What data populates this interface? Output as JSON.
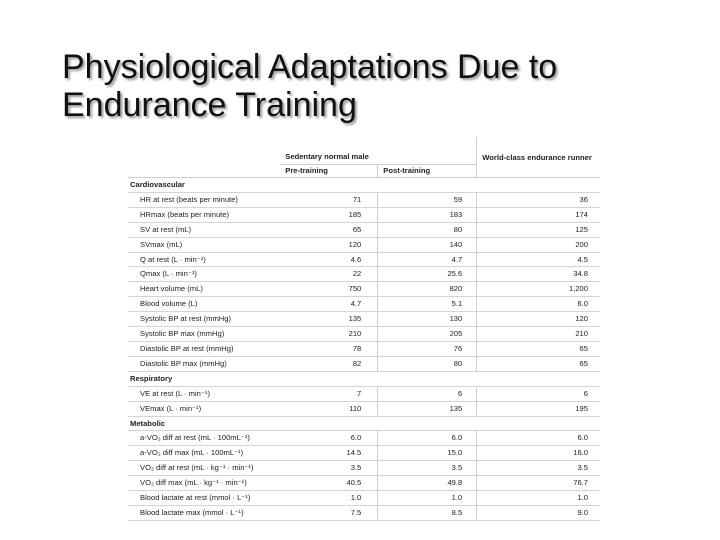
{
  "slide": {
    "title_line1": "Physiological Adaptations Due to",
    "title_line2": "Endurance Training"
  },
  "table": {
    "headers": {
      "sedentary": "Sedentary normal male",
      "pre": "Pre-training",
      "post": "Post-training",
      "elite": "World-class endurance runner"
    },
    "sections": [
      {
        "name": "Cardiovascular",
        "rows": [
          {
            "label": "HR at rest (beats per minute)",
            "pre": "71",
            "post": "59",
            "elite": "36"
          },
          {
            "label": "HRmax (beats per minute)",
            "pre": "185",
            "post": "183",
            "elite": "174"
          },
          {
            "label": "SV at rest (mL)",
            "pre": "65",
            "post": "80",
            "elite": "125"
          },
          {
            "label": "SVmax (mL)",
            "pre": "120",
            "post": "140",
            "elite": "200"
          },
          {
            "label": "Q at rest (L · min⁻¹)",
            "pre": "4.6",
            "post": "4.7",
            "elite": "4.5"
          },
          {
            "label": "Qmax (L · min⁻¹)",
            "pre": "22",
            "post": "25.6",
            "elite": "34.8"
          },
          {
            "label": "Heart volume (mL)",
            "pre": "750",
            "post": "820",
            "elite": "1,200"
          },
          {
            "label": "Blood volume (L)",
            "pre": "4.7",
            "post": "5.1",
            "elite": "6.0"
          },
          {
            "label": "Systolic BP at rest (mmHg)",
            "pre": "135",
            "post": "130",
            "elite": "120"
          },
          {
            "label": "Systolic BP max (mmHg)",
            "pre": "210",
            "post": "205",
            "elite": "210"
          },
          {
            "label": "Diastolic BP at rest (mmHg)",
            "pre": "78",
            "post": "76",
            "elite": "65"
          },
          {
            "label": "Diastolic BP max (mmHg)",
            "pre": "82",
            "post": "80",
            "elite": "65"
          }
        ]
      },
      {
        "name": "Respiratory",
        "rows": [
          {
            "label": "VE at rest (L · min⁻¹)",
            "pre": "7",
            "post": "6",
            "elite": "6"
          },
          {
            "label": "VEmax (L · min⁻¹)",
            "pre": "110",
            "post": "135",
            "elite": "195"
          }
        ]
      },
      {
        "name": "Metabolic",
        "rows": [
          {
            "label": "a-VO₂ diff at rest (mL · 100mL⁻¹)",
            "pre": "6.0",
            "post": "6.0",
            "elite": "6.0"
          },
          {
            "label": "a-VO₂ diff max (mL · 100mL⁻¹)",
            "pre": "14.5",
            "post": "15.0",
            "elite": "16.0"
          },
          {
            "label": "VO₂ diff at rest (mL · kg⁻¹ · min⁻¹)",
            "pre": "3.5",
            "post": "3.5",
            "elite": "3.5"
          },
          {
            "label": "VO₂ diff max (mL · kg⁻¹ · min⁻¹)",
            "pre": "40.5",
            "post": "49.8",
            "elite": "76.7"
          },
          {
            "label": "Blood lactate at rest (mmol · L⁻¹)",
            "pre": "1.0",
            "post": "1.0",
            "elite": "1.0"
          },
          {
            "label": "Blood lactate max (mmol · L⁻¹)",
            "pre": "7.5",
            "post": "8.5",
            "elite": "9.0"
          }
        ]
      }
    ]
  }
}
